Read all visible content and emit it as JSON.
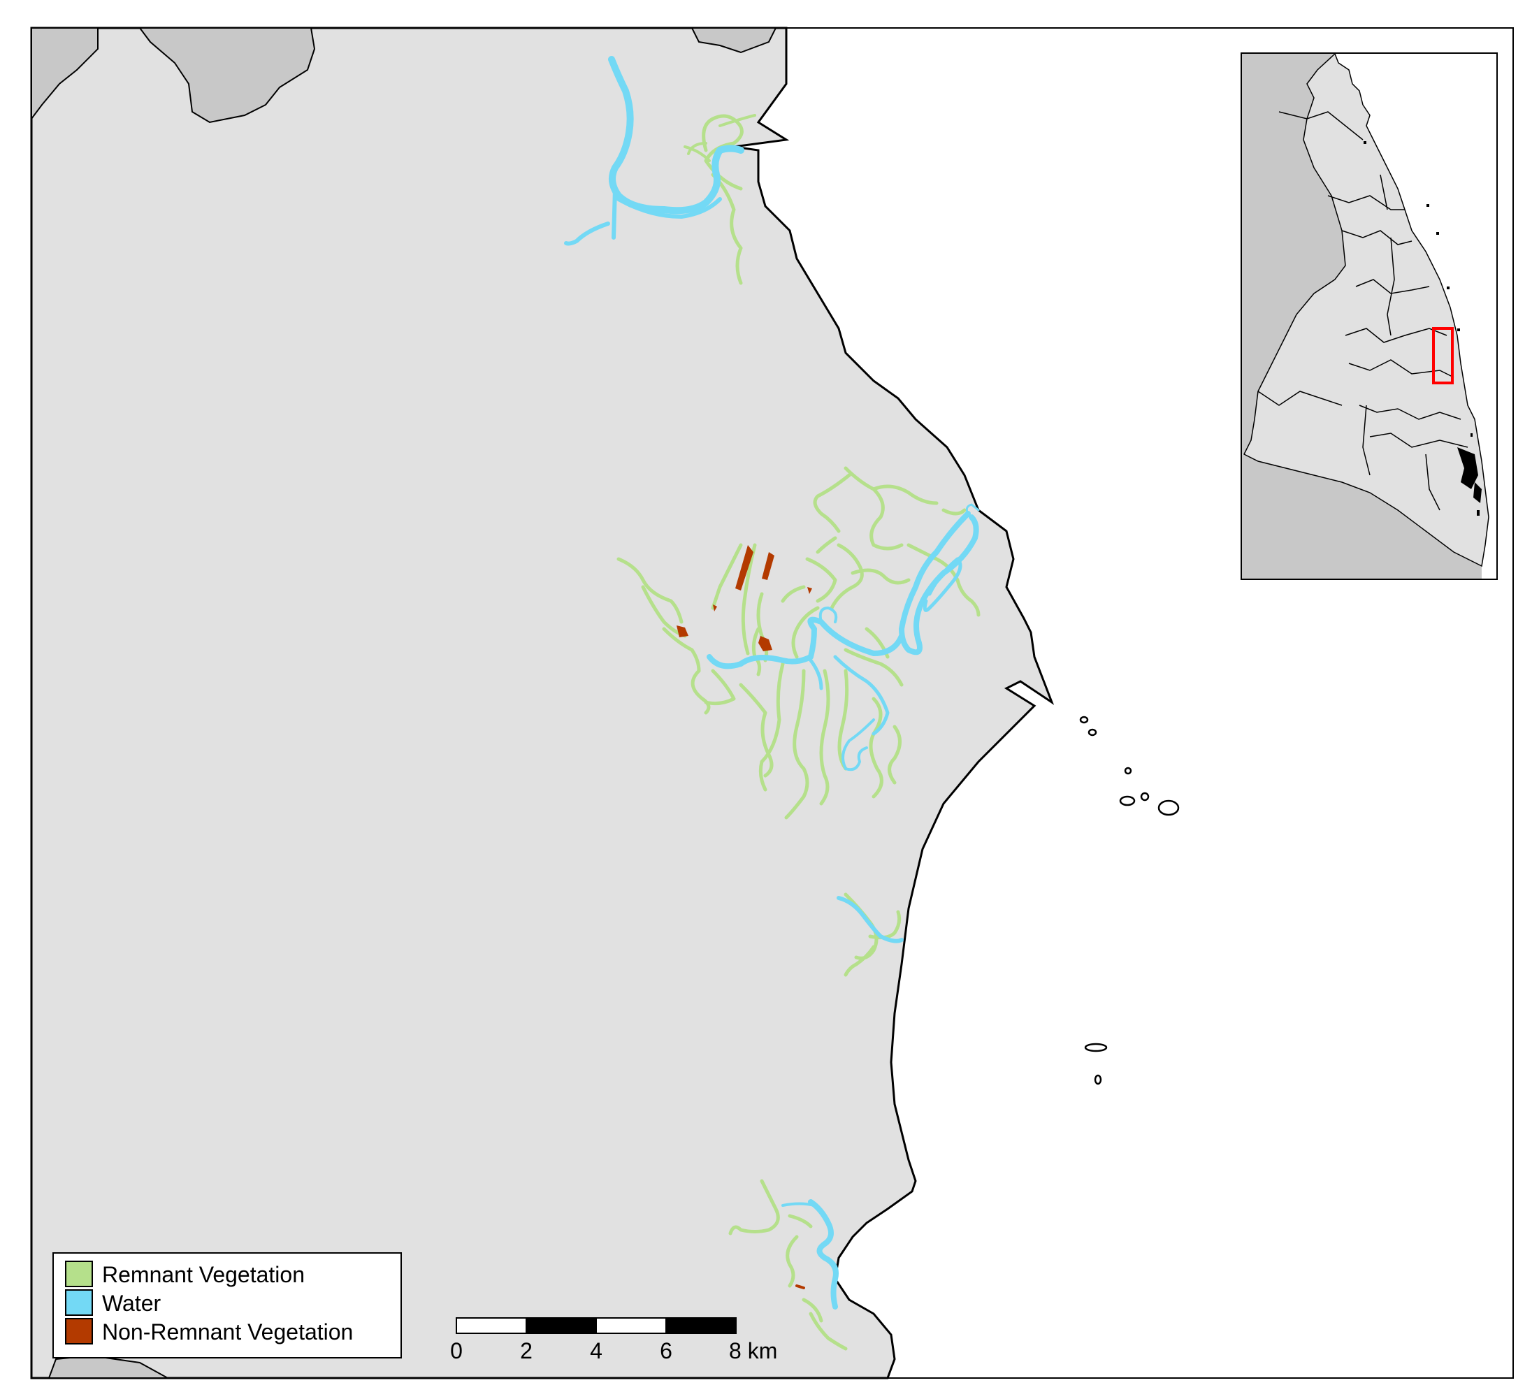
{
  "colors": {
    "land": "#e1e1e1",
    "land_dark": "#c8c8c8",
    "sea": "#ffffff",
    "outline": "#000000",
    "remnant_vegetation": "#b5e08b",
    "water": "#73d9f5",
    "non_remnant_vegetation": "#b33a00",
    "locator_box": "#ff0000"
  },
  "legend": {
    "items": [
      {
        "label": "Remnant Vegetation",
        "color": "#b5e08b"
      },
      {
        "label": "Water",
        "color": "#73d9f5"
      },
      {
        "label": "Non-Remnant Vegetation",
        "color": "#b33a00"
      }
    ]
  },
  "scale_bar": {
    "ticks": [
      "0",
      "2",
      "4",
      "6",
      "8 km"
    ],
    "unit": "km"
  },
  "inset": {
    "highlight": "red rectangle marking main map extent"
  }
}
